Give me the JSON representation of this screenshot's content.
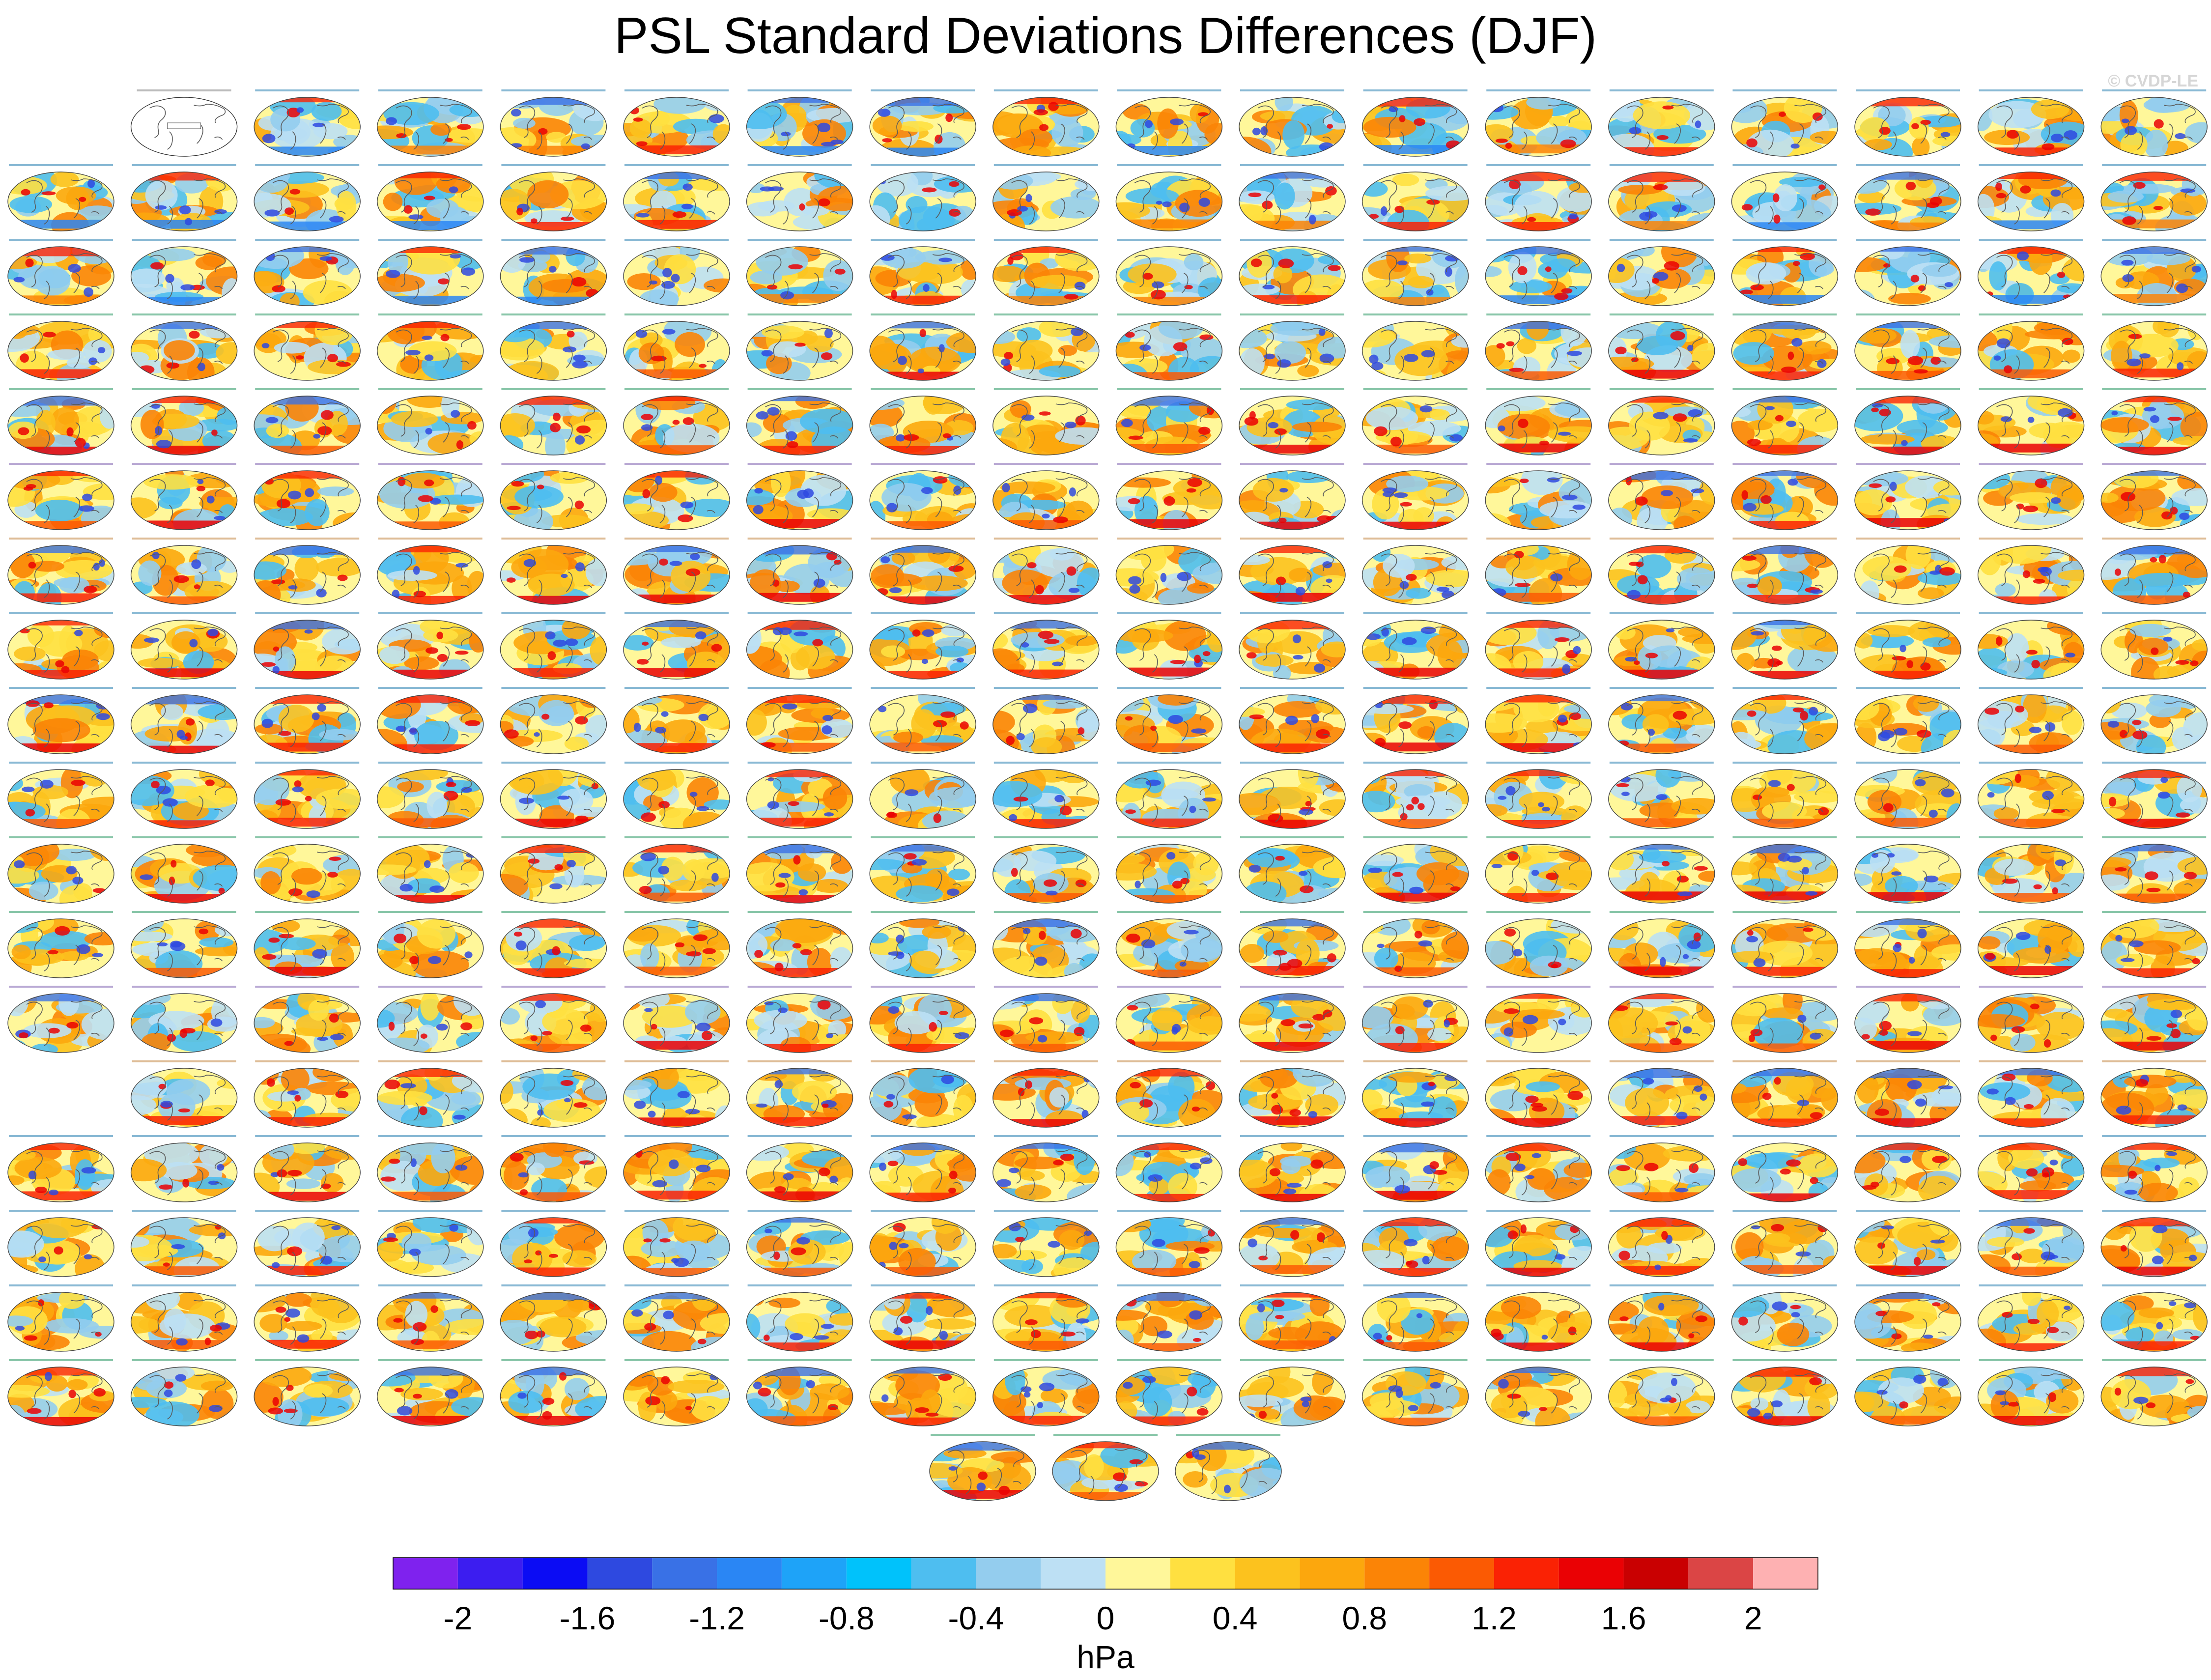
{
  "title": "PSL Standard Deviations Differences (DJF)",
  "credit": "© CVDP-LE",
  "grid": {
    "rows": [
      {
        "offset": 1,
        "count": 17
      },
      {
        "offset": 0,
        "count": 18
      },
      {
        "offset": 0,
        "count": 18
      },
      {
        "offset": 0,
        "count": 18
      },
      {
        "offset": 0,
        "count": 18
      },
      {
        "offset": 0,
        "count": 18
      },
      {
        "offset": 0,
        "count": 18
      },
      {
        "offset": 0,
        "count": 18
      },
      {
        "offset": 0,
        "count": 18
      },
      {
        "offset": 0,
        "count": 18
      },
      {
        "offset": 0,
        "count": 18
      },
      {
        "offset": 0,
        "count": 18
      },
      {
        "offset": 0,
        "count": 18
      },
      {
        "offset": 1,
        "count": 17
      },
      {
        "offset": 0,
        "count": 18
      },
      {
        "offset": 0,
        "count": 18
      },
      {
        "offset": 0,
        "count": 18
      },
      {
        "offset": 0,
        "count": 18
      }
    ],
    "extra_row": {
      "count": 3
    }
  },
  "colorbar": {
    "unit": "hPa",
    "colors": [
      "#7f22ee",
      "#3c1df0",
      "#0b0cf4",
      "#2e49e0",
      "#3971e6",
      "#2a86f4",
      "#1ea3f8",
      "#00c2fb",
      "#4ebef0",
      "#94cdee",
      "#bde0f4",
      "#fff79a",
      "#ffe040",
      "#fcc21e",
      "#fca70d",
      "#fb8406",
      "#fb5a03",
      "#fa2204",
      "#ea0104",
      "#c90001",
      "#db4545",
      "#feb1b2"
    ],
    "ticks": [
      "-2",
      "-1.6",
      "-1.2",
      "-0.8",
      "-0.4",
      "0",
      "0.4",
      "0.8",
      "1.2",
      "1.6",
      "2"
    ]
  }
}
